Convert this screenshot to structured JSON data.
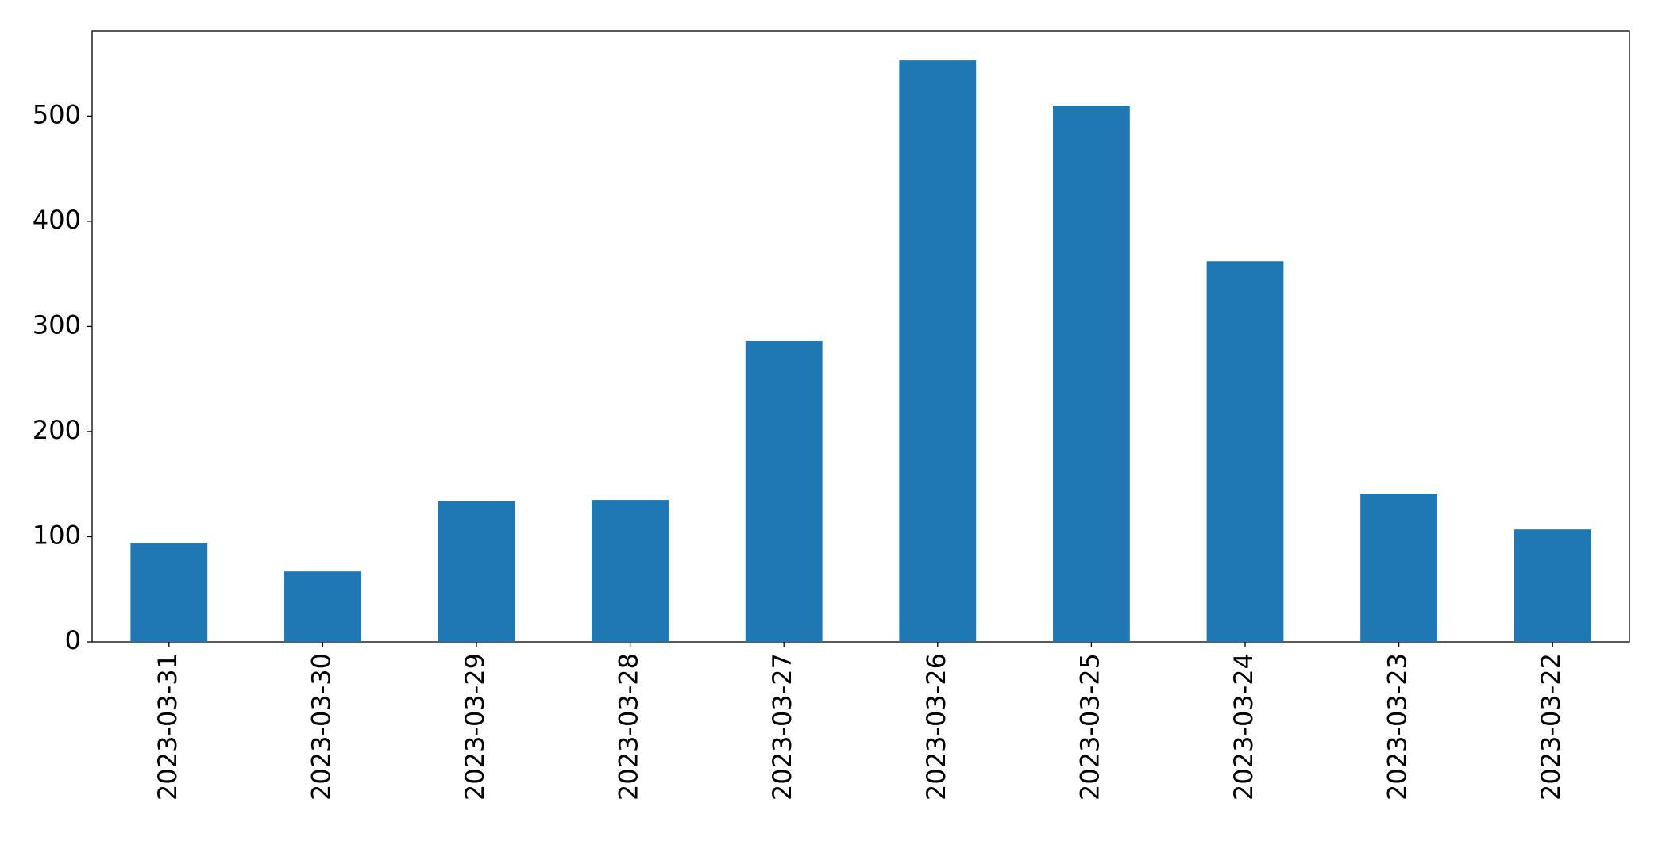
{
  "chart_data": {
    "type": "bar",
    "categories": [
      "2023-03-31",
      "2023-03-30",
      "2023-03-29",
      "2023-03-28",
      "2023-03-27",
      "2023-03-26",
      "2023-03-25",
      "2023-03-24",
      "2023-03-23",
      "2023-03-22"
    ],
    "values": [
      94,
      67,
      134,
      135,
      286,
      553,
      510,
      362,
      141,
      107
    ],
    "color": "#1f77b4",
    "ylim": [
      0,
      581
    ],
    "yticks": [
      0,
      100,
      200,
      300,
      400,
      500
    ],
    "grid": false
  }
}
